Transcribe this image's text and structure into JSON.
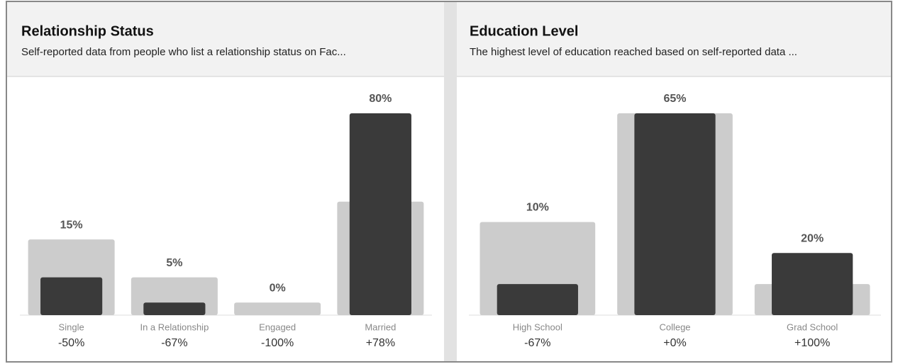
{
  "chart_data": [
    {
      "type": "bar",
      "title": "Relationship Status",
      "subtitle": "Self-reported data from people who list a relationship status on Fac...",
      "categories": [
        "Single",
        "In a Relationship",
        "Engaged",
        "Married"
      ],
      "changes": [
        "-50%",
        "-67%",
        "-100%",
        "+78%"
      ],
      "series": [
        {
          "color": "#cccccc",
          "values": [
            30,
            15,
            5,
            45
          ]
        },
        {
          "color": "#3a3a3a",
          "values": [
            15,
            5,
            0,
            80
          ],
          "value_labels": [
            "15%",
            "5%",
            "0%",
            "80%"
          ]
        }
      ],
      "ylim": [
        0,
        80
      ]
    },
    {
      "type": "bar",
      "title": "Education Level",
      "subtitle": "The highest level of education reached based on self-reported data ...",
      "categories": [
        "High School",
        "College",
        "Grad School"
      ],
      "changes": [
        "-67%",
        "+0%",
        "+100%"
      ],
      "series": [
        {
          "color": "#cccccc",
          "values": [
            30,
            65,
            10
          ]
        },
        {
          "color": "#3a3a3a",
          "values": [
            10,
            65,
            20
          ],
          "value_labels": [
            "10%",
            "65%",
            "20%"
          ]
        }
      ],
      "ylim": [
        0,
        65
      ]
    }
  ]
}
